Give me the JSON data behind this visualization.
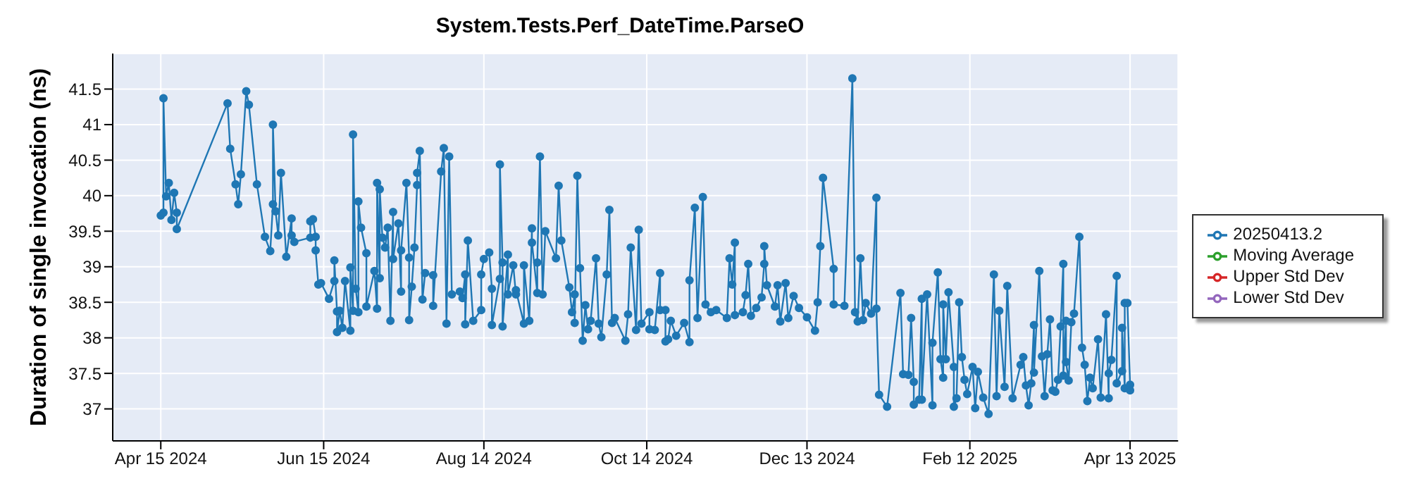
{
  "chart_data": {
    "type": "line",
    "title": "System.Tests.Perf_DateTime.ParseO",
    "ylabel": "Duration of single invocation (ns)",
    "xlim": [
      "2024-03-28",
      "2025-05-01"
    ],
    "xticks": [
      {
        "value": "2024-04-15",
        "label": "Apr 15 2024"
      },
      {
        "value": "2024-06-15",
        "label": "Jun 15 2024"
      },
      {
        "value": "2024-08-14",
        "label": "Aug 14 2024"
      },
      {
        "value": "2024-10-14",
        "label": "Oct 14 2024"
      },
      {
        "value": "2024-12-13",
        "label": "Dec 13 2024"
      },
      {
        "value": "2025-02-12",
        "label": "Feb 12 2025"
      },
      {
        "value": "2025-04-13",
        "label": "Apr 13 2025"
      }
    ],
    "ylim": [
      36.55,
      42.0
    ],
    "yticks": [
      37,
      37.5,
      38,
      38.5,
      39,
      39.5,
      40,
      40.5,
      41,
      41.5
    ],
    "grid": true,
    "legend": "right",
    "marker": "circle",
    "line_style": "solid",
    "x": [
      "2024-04-15",
      "2024-04-16",
      "2024-04-16",
      "2024-04-17",
      "2024-04-18",
      "2024-04-19",
      "2024-04-20",
      "2024-04-21",
      "2024-04-21",
      "2024-05-10",
      "2024-05-11",
      "2024-05-13",
      "2024-05-14",
      "2024-05-15",
      "2024-05-17",
      "2024-05-18",
      "2024-05-21",
      "2024-05-24",
      "2024-05-26",
      "2024-05-27",
      "2024-05-27",
      "2024-05-28",
      "2024-05-29",
      "2024-05-30",
      "2024-06-01",
      "2024-06-03",
      "2024-06-03",
      "2024-06-04",
      "2024-06-10",
      "2024-06-10",
      "2024-06-11",
      "2024-06-12",
      "2024-06-12",
      "2024-06-13",
      "2024-06-14",
      "2024-06-17",
      "2024-06-19",
      "2024-06-19",
      "2024-06-20",
      "2024-06-20",
      "2024-06-21",
      "2024-06-22",
      "2024-06-23",
      "2024-06-25",
      "2024-06-25",
      "2024-06-26",
      "2024-06-26",
      "2024-06-27",
      "2024-06-28",
      "2024-06-28",
      "2024-06-29",
      "2024-07-01",
      "2024-07-01",
      "2024-07-04",
      "2024-07-05",
      "2024-07-05",
      "2024-07-06",
      "2024-07-06",
      "2024-07-07",
      "2024-07-08",
      "2024-07-09",
      "2024-07-10",
      "2024-07-11",
      "2024-07-11",
      "2024-07-13",
      "2024-07-14",
      "2024-07-14",
      "2024-07-16",
      "2024-07-17",
      "2024-07-17",
      "2024-07-18",
      "2024-07-19",
      "2024-07-20",
      "2024-07-20",
      "2024-07-21",
      "2024-07-22",
      "2024-07-23",
      "2024-07-26",
      "2024-07-26",
      "2024-07-29",
      "2024-07-30",
      "2024-07-31",
      "2024-08-01",
      "2024-08-02",
      "2024-08-05",
      "2024-08-06",
      "2024-08-07",
      "2024-08-07",
      "2024-08-08",
      "2024-08-10",
      "2024-08-13",
      "2024-08-13",
      "2024-08-14",
      "2024-08-16",
      "2024-08-17",
      "2024-08-17",
      "2024-08-20",
      "2024-08-20",
      "2024-08-21",
      "2024-08-21",
      "2024-08-23",
      "2024-08-23",
      "2024-08-25",
      "2024-08-26",
      "2024-08-26",
      "2024-08-29",
      "2024-08-29",
      "2024-08-31",
      "2024-09-01",
      "2024-09-01",
      "2024-09-03",
      "2024-09-03",
      "2024-09-04",
      "2024-09-05",
      "2024-09-06",
      "2024-09-10",
      "2024-09-11",
      "2024-09-12",
      "2024-09-15",
      "2024-09-16",
      "2024-09-17",
      "2024-09-17",
      "2024-09-18",
      "2024-09-19",
      "2024-09-20",
      "2024-09-21",
      "2024-09-22",
      "2024-09-23",
      "2024-09-25",
      "2024-09-26",
      "2024-09-27",
      "2024-09-29",
      "2024-09-30",
      "2024-10-01",
      "2024-10-02",
      "2024-10-06",
      "2024-10-07",
      "2024-10-08",
      "2024-10-10",
      "2024-10-11",
      "2024-10-12",
      "2024-10-15",
      "2024-10-15",
      "2024-10-17",
      "2024-10-19",
      "2024-10-19",
      "2024-10-21",
      "2024-10-21",
      "2024-10-22",
      "2024-10-23",
      "2024-10-25",
      "2024-10-28",
      "2024-10-30",
      "2024-10-30",
      "2024-11-01",
      "2024-11-02",
      "2024-11-04",
      "2024-11-05",
      "2024-11-07",
      "2024-11-09",
      "2024-11-13",
      "2024-11-14",
      "2024-11-15",
      "2024-11-16",
      "2024-11-16",
      "2024-11-19",
      "2024-11-20",
      "2024-11-21",
      "2024-11-22",
      "2024-11-24",
      "2024-11-26",
      "2024-11-27",
      "2024-11-27",
      "2024-11-28",
      "2024-12-01",
      "2024-12-02",
      "2024-12-03",
      "2024-12-05",
      "2024-12-06",
      "2024-12-08",
      "2024-12-10",
      "2024-12-13",
      "2024-12-16",
      "2024-12-17",
      "2024-12-18",
      "2024-12-19",
      "2024-12-23",
      "2024-12-23",
      "2024-12-27",
      "2024-12-30",
      "2024-12-31",
      "2025-01-01",
      "2025-01-02",
      "2025-01-03",
      "2025-01-04",
      "2025-01-06",
      "2025-01-08",
      "2025-01-08",
      "2025-01-09",
      "2025-01-12",
      "2025-01-17",
      "2025-01-18",
      "2025-01-20",
      "2025-01-21",
      "2025-01-22",
      "2025-01-22",
      "2025-01-24",
      "2025-01-25",
      "2025-01-25",
      "2025-01-27",
      "2025-01-29",
      "2025-01-29",
      "2025-01-31",
      "2025-02-01",
      "2025-02-02",
      "2025-02-02",
      "2025-02-03",
      "2025-02-04",
      "2025-02-06",
      "2025-02-06",
      "2025-02-07",
      "2025-02-08",
      "2025-02-09",
      "2025-02-10",
      "2025-02-11",
      "2025-02-13",
      "2025-02-14",
      "2025-02-15",
      "2025-02-17",
      "2025-02-19",
      "2025-02-21",
      "2025-02-22",
      "2025-02-23",
      "2025-02-25",
      "2025-02-26",
      "2025-02-28",
      "2025-03-03",
      "2025-03-04",
      "2025-03-05",
      "2025-03-06",
      "2025-03-07",
      "2025-03-08",
      "2025-03-08",
      "2025-03-10",
      "2025-03-11",
      "2025-03-12",
      "2025-03-13",
      "2025-03-14",
      "2025-03-15",
      "2025-03-16",
      "2025-03-17",
      "2025-03-18",
      "2025-03-19",
      "2025-03-19",
      "2025-03-20",
      "2025-03-20",
      "2025-03-21",
      "2025-03-22",
      "2025-03-23",
      "2025-03-25",
      "2025-03-26",
      "2025-03-27",
      "2025-03-28",
      "2025-03-29",
      "2025-03-30",
      "2025-04-01",
      "2025-04-02",
      "2025-04-04",
      "2025-04-05",
      "2025-04-05",
      "2025-04-06",
      "2025-04-08",
      "2025-04-08",
      "2025-04-10",
      "2025-04-10",
      "2025-04-11",
      "2025-04-11",
      "2025-04-12",
      "2025-04-13",
      "2025-04-13"
    ],
    "series": [
      {
        "name": "20250413.2",
        "color": "#1f77b4",
        "values": [
          39.72,
          39.76,
          41.37,
          39.99,
          40.18,
          39.66,
          40.04,
          39.76,
          39.53,
          41.3,
          40.66,
          40.16,
          39.88,
          40.3,
          41.47,
          41.28,
          40.16,
          39.42,
          39.22,
          39.88,
          41.0,
          39.78,
          39.44,
          40.32,
          39.14,
          39.68,
          39.44,
          39.35,
          39.41,
          39.64,
          39.67,
          39.42,
          39.23,
          38.75,
          38.77,
          38.55,
          38.8,
          39.09,
          38.37,
          38.08,
          38.38,
          38.14,
          38.8,
          38.1,
          38.99,
          38.38,
          40.86,
          38.69,
          38.36,
          39.92,
          39.55,
          39.19,
          38.44,
          38.94,
          38.41,
          40.18,
          38.84,
          40.09,
          39.41,
          39.27,
          39.55,
          38.24,
          39.77,
          39.11,
          39.61,
          38.65,
          39.23,
          40.18,
          39.13,
          38.25,
          38.72,
          39.27,
          40.15,
          40.32,
          40.63,
          38.54,
          38.91,
          38.88,
          38.45,
          40.34,
          40.67,
          38.2,
          40.55,
          38.61,
          38.65,
          38.56,
          38.89,
          38.19,
          39.37,
          38.24,
          38.39,
          38.89,
          39.11,
          39.2,
          38.69,
          38.18,
          38.83,
          40.44,
          39.06,
          38.16,
          39.17,
          38.61,
          39.02,
          38.61,
          38.67,
          38.2,
          39.02,
          38.24,
          39.54,
          39.34,
          38.63,
          39.06,
          40.55,
          38.61,
          39.5,
          39.12,
          40.14,
          39.37,
          38.71,
          38.36,
          38.61,
          38.21,
          40.28,
          38.98,
          37.96,
          38.46,
          38.12,
          38.24,
          39.12,
          38.2,
          38.01,
          38.89,
          39.8,
          38.21,
          38.28,
          37.96,
          38.33,
          39.27,
          38.11,
          39.52,
          38.2,
          38.36,
          38.12,
          38.11,
          38.91,
          38.39,
          38.39,
          37.95,
          37.98,
          38.24,
          38.03,
          38.21,
          37.94,
          38.81,
          39.83,
          38.28,
          39.98,
          38.47,
          38.36,
          38.39,
          38.28,
          39.12,
          38.75,
          39.34,
          38.32,
          38.36,
          38.6,
          39.04,
          38.31,
          38.42,
          38.57,
          39.04,
          39.29,
          38.74,
          38.44,
          38.74,
          38.23,
          38.77,
          38.28,
          38.59,
          38.42,
          38.29,
          38.1,
          38.5,
          39.29,
          40.25,
          38.97,
          38.47,
          38.45,
          41.65,
          38.36,
          38.23,
          39.12,
          38.25,
          38.49,
          38.34,
          39.97,
          38.41,
          37.2,
          37.03,
          38.63,
          37.49,
          37.48,
          38.28,
          37.38,
          37.06,
          37.13,
          38.55,
          37.13,
          38.61,
          37.05,
          37.93,
          38.92,
          37.7,
          37.44,
          38.47,
          37.7,
          38.64,
          37.59,
          37.03,
          37.15,
          38.5,
          37.73,
          37.41,
          37.21,
          37.59,
          37.01,
          37.52,
          37.16,
          36.93,
          38.89,
          37.18,
          38.38,
          37.31,
          38.73,
          37.15,
          37.62,
          37.73,
          37.33,
          37.05,
          37.36,
          38.18,
          37.51,
          38.94,
          37.74,
          37.18,
          37.77,
          38.26,
          37.26,
          37.24,
          37.41,
          38.16,
          39.04,
          37.47,
          38.24,
          37.66,
          37.4,
          38.22,
          38.34,
          39.42,
          37.86,
          37.62,
          37.11,
          37.44,
          37.29,
          37.98,
          37.16,
          38.33,
          37.15,
          37.5,
          37.69,
          38.87,
          37.36,
          37.53,
          38.14,
          37.29,
          38.49,
          38.49,
          37.34,
          37.26
        ]
      },
      {
        "name": "Moving Average",
        "color": "#2ca02c",
        "values": [
          null,
          null,
          null,
          null,
          null,
          null,
          null,
          null,
          null,
          null,
          null,
          null,
          null,
          null,
          null,
          null,
          null,
          null,
          null,
          null,
          null,
          null,
          null,
          null,
          null,
          null,
          null,
          null,
          null,
          null,
          null,
          null,
          null,
          null,
          null,
          null,
          null,
          null,
          null,
          null,
          null,
          null,
          null,
          null,
          null,
          null,
          null,
          null,
          null,
          null,
          null,
          null,
          null,
          null,
          null,
          null,
          null,
          null,
          null,
          null,
          null,
          null,
          null,
          null,
          null,
          null,
          null,
          null,
          null,
          null,
          null,
          null,
          null,
          null,
          null,
          null,
          null,
          null,
          null,
          null,
          null,
          null,
          null,
          null,
          null,
          null,
          null,
          null,
          null,
          null,
          null,
          null,
          null,
          null,
          null,
          null,
          null,
          null,
          null,
          null,
          null,
          null,
          null,
          null,
          null,
          null,
          null,
          null,
          null,
          null,
          null,
          null,
          null,
          null,
          null,
          null,
          null,
          null,
          null,
          null,
          null,
          null,
          null,
          null,
          null,
          null,
          null,
          null,
          null,
          null,
          null,
          null,
          null,
          null,
          null,
          null,
          null,
          null,
          null,
          null,
          null,
          null,
          null,
          null,
          null,
          null,
          null,
          null,
          null,
          null,
          null,
          null,
          null,
          null,
          null,
          null,
          null,
          null,
          null,
          null,
          null,
          null,
          null,
          null,
          null,
          null,
          null,
          null,
          null,
          null,
          null,
          null,
          null,
          null,
          null,
          null,
          null,
          null,
          null,
          null,
          null,
          null,
          null,
          null,
          null,
          null,
          null,
          null,
          null,
          null,
          null,
          null,
          null,
          null,
          null,
          null,
          null,
          null,
          null,
          null,
          null,
          null,
          null,
          null,
          null,
          null,
          null,
          null,
          null,
          null,
          null,
          null,
          null,
          null,
          null,
          null,
          null,
          null,
          null,
          null,
          null,
          null,
          null,
          null,
          null,
          null,
          null,
          null,
          null,
          null,
          null,
          null,
          null,
          null,
          null,
          null,
          null,
          null,
          null,
          null,
          null,
          null,
          null,
          null,
          null,
          null,
          null,
          null,
          null,
          null,
          null,
          null,
          null,
          null,
          null,
          null,
          null,
          null,
          null,
          null,
          null,
          null,
          null,
          null,
          null,
          null,
          null,
          null,
          null,
          null,
          null,
          null,
          null,
          null,
          null,
          null,
          null,
          null,
          null,
          null
        ]
      },
      {
        "name": "Upper Std Dev",
        "color": "#d62728",
        "values": [
          null,
          null,
          null,
          null,
          null,
          null,
          null,
          null,
          null,
          null,
          null,
          null,
          null,
          null,
          null,
          null,
          null,
          null,
          null,
          null,
          null,
          null,
          null,
          null,
          null,
          null,
          null,
          null,
          null,
          null,
          null,
          null,
          null,
          null,
          null,
          null,
          null,
          null,
          null,
          null,
          null,
          null,
          null,
          null,
          null,
          null,
          null,
          null,
          null,
          null,
          null,
          null,
          null,
          null,
          null,
          null,
          null,
          null,
          null,
          null,
          null,
          null,
          null,
          null,
          null,
          null,
          null,
          null,
          null,
          null,
          null,
          null,
          null,
          null,
          null,
          null,
          null,
          null,
          null,
          null,
          null,
          null,
          null,
          null,
          null,
          null,
          null,
          null,
          null,
          null,
          null,
          null,
          null,
          null,
          null,
          null,
          null,
          null,
          null,
          null,
          null,
          null,
          null,
          null,
          null,
          null,
          null,
          null,
          null,
          null,
          null,
          null,
          null,
          null,
          null,
          null,
          null,
          null,
          null,
          null,
          null,
          null,
          null,
          null,
          null,
          null,
          null,
          null,
          null,
          null,
          null,
          null,
          null,
          null,
          null,
          null,
          null,
          null,
          null,
          null,
          null,
          null,
          null,
          null,
          null,
          null,
          null,
          null,
          null,
          null,
          null,
          null,
          null,
          null,
          null,
          null,
          null,
          null,
          null,
          null,
          null,
          null,
          null,
          null,
          null,
          null,
          null,
          null,
          null,
          null,
          null,
          null,
          null,
          null,
          null,
          null,
          null,
          null,
          null,
          null,
          null,
          null,
          null,
          null,
          null,
          null,
          null,
          null,
          null,
          null,
          null,
          null,
          null,
          null,
          null,
          null,
          null,
          null,
          null,
          null,
          null,
          null,
          null,
          null,
          null,
          null,
          null,
          null,
          null,
          null,
          null,
          null,
          null,
          null,
          null,
          null,
          null,
          null,
          null,
          null,
          null,
          null,
          null,
          null,
          null,
          null,
          null,
          null,
          null,
          null,
          null,
          null,
          null,
          null,
          null,
          null,
          null,
          null,
          null,
          null,
          null,
          null,
          null,
          null,
          null,
          null,
          null,
          null,
          null,
          null,
          null,
          null,
          null,
          null,
          null,
          null,
          null,
          null,
          null,
          null,
          null,
          null,
          null,
          null,
          null,
          null,
          null,
          null,
          null,
          null,
          null,
          null,
          null,
          null,
          null,
          null,
          null,
          null,
          null,
          null
        ]
      },
      {
        "name": "Lower Std Dev",
        "color": "#9467bd",
        "values": [
          null,
          null,
          null,
          null,
          null,
          null,
          null,
          null,
          null,
          null,
          null,
          null,
          null,
          null,
          null,
          null,
          null,
          null,
          null,
          null,
          null,
          null,
          null,
          null,
          null,
          null,
          null,
          null,
          null,
          null,
          null,
          null,
          null,
          null,
          null,
          null,
          null,
          null,
          null,
          null,
          null,
          null,
          null,
          null,
          null,
          null,
          null,
          null,
          null,
          null,
          null,
          null,
          null,
          null,
          null,
          null,
          null,
          null,
          null,
          null,
          null,
          null,
          null,
          null,
          null,
          null,
          null,
          null,
          null,
          null,
          null,
          null,
          null,
          null,
          null,
          null,
          null,
          null,
          null,
          null,
          null,
          null,
          null,
          null,
          null,
          null,
          null,
          null,
          null,
          null,
          null,
          null,
          null,
          null,
          null,
          null,
          null,
          null,
          null,
          null,
          null,
          null,
          null,
          null,
          null,
          null,
          null,
          null,
          null,
          null,
          null,
          null,
          null,
          null,
          null,
          null,
          null,
          null,
          null,
          null,
          null,
          null,
          null,
          null,
          null,
          null,
          null,
          null,
          null,
          null,
          null,
          null,
          null,
          null,
          null,
          null,
          null,
          null,
          null,
          null,
          null,
          null,
          null,
          null,
          null,
          null,
          null,
          null,
          null,
          null,
          null,
          null,
          null,
          null,
          null,
          null,
          null,
          null,
          null,
          null,
          null,
          null,
          null,
          null,
          null,
          null,
          null,
          null,
          null,
          null,
          null,
          null,
          null,
          null,
          null,
          null,
          null,
          null,
          null,
          null,
          null,
          null,
          null,
          null,
          null,
          null,
          null,
          null,
          null,
          null,
          null,
          null,
          null,
          null,
          null,
          null,
          null,
          null,
          null,
          null,
          null,
          null,
          null,
          null,
          null,
          null,
          null,
          null,
          null,
          null,
          null,
          null,
          null,
          null,
          null,
          null,
          null,
          null,
          null,
          null,
          null,
          null,
          null,
          null,
          null,
          null,
          null,
          null,
          null,
          null,
          null,
          null,
          null,
          null,
          null,
          null,
          null,
          null,
          null,
          null,
          null,
          null,
          null,
          null,
          null,
          null,
          null,
          null,
          null,
          null,
          null,
          null,
          null,
          null,
          null,
          null,
          null,
          null,
          null,
          null,
          null,
          null,
          null,
          null,
          null,
          null,
          null,
          null,
          null,
          null,
          null,
          null,
          null,
          null,
          null,
          null,
          null,
          null,
          null,
          null
        ]
      }
    ]
  }
}
